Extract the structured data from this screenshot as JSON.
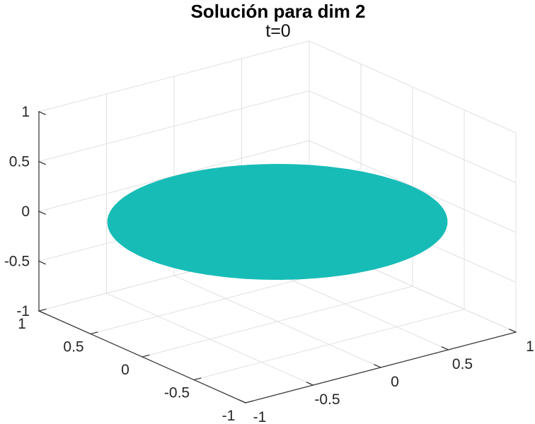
{
  "figure": {
    "title": "Solución para dim 2",
    "subtitle": "t=0"
  },
  "colors": {
    "background": "#ffffff",
    "surface": "#17bcb7",
    "grid": "#e0e0e0",
    "axis": "#3c3c3c",
    "tick_text": "#262626",
    "title_text": "#000000"
  },
  "chart_data": {
    "type": "surface",
    "title": "Solución para dim 2",
    "subtitle": "t=0",
    "description": "MATLAB-style 3D axes box (default view az -37.5, el 30) containing a flat filled teal disc of radius 1 lying in the z=0 plane, centered at the origin; the solution of a PDE in dimension 2 at time t=0.",
    "disc": {
      "center": [
        0,
        0,
        0
      ],
      "radius": 1,
      "plane": "z = 0",
      "z": 0,
      "color": "#17bcb7"
    },
    "xlim": [
      -1,
      1
    ],
    "ylim": [
      -1,
      1
    ],
    "zlim": [
      -1,
      1
    ],
    "xticks": [
      -1,
      -0.5,
      0,
      0.5,
      1
    ],
    "yticks": [
      -1,
      -0.5,
      0,
      0.5,
      1
    ],
    "zticks": [
      -1,
      -0.5,
      0,
      0.5,
      1
    ],
    "xtick_labels": [
      "-1",
      "-0.5",
      "0",
      "0.5",
      "1"
    ],
    "ytick_labels": [
      "-1",
      "-0.5",
      "0",
      "0.5",
      "1"
    ],
    "ztick_labels": [
      "1",
      "0.5",
      "0",
      "-0.5",
      "-1"
    ],
    "ztick_values_top_to_bottom": [
      1,
      0.5,
      0,
      -0.5,
      -1
    ],
    "grid": true,
    "legend": false,
    "view": "3d, azimuth -37.5 deg, elevation 30 deg"
  }
}
